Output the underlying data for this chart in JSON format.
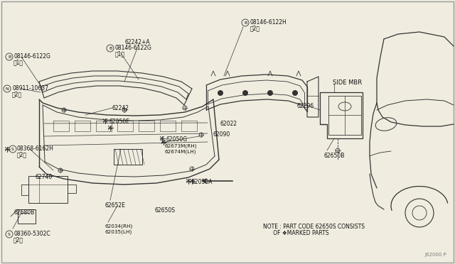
{
  "bg_color": "#f0ede0",
  "line_color": "#333333",
  "text_color": "#111111",
  "border_color": "#999999",
  "fig_width": 6.4,
  "fig_height": 3.72,
  "watermark": "J62000 P",
  "note_line1": "NOTE : PART CODE 62650S CONSISTS",
  "note_line2": "      OF ❖MARKED PARTS"
}
